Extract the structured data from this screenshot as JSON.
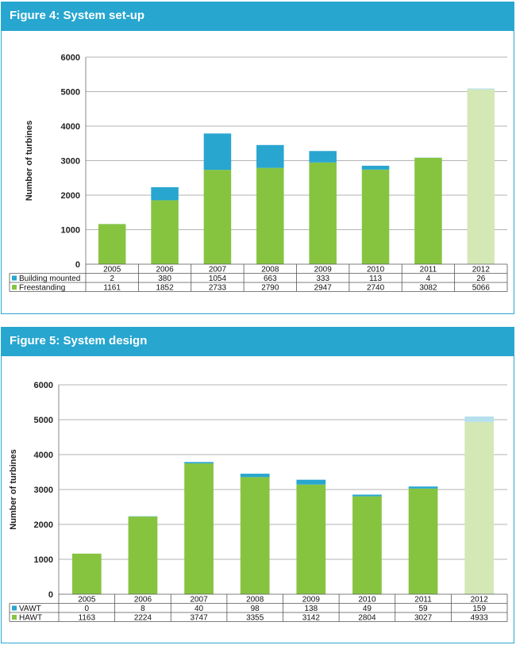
{
  "colors": {
    "header": "#27a6d0",
    "green": "#86c440",
    "blue": "#29a6cf",
    "green_light": "#d4e8b6",
    "blue_light": "#b6e0ee"
  },
  "figures": [
    {
      "title": "Figure 4: System set-up",
      "ylabel": "Number of turbines"
    },
    {
      "title": "Figure 5: System design",
      "ylabel": "Number of turbines"
    }
  ],
  "chart_data": [
    {
      "type": "bar",
      "stacked": true,
      "title": "Figure 4: System set-up",
      "ylabel": "Number of turbines",
      "ylim": [
        0,
        6000
      ],
      "yticks": [
        "0",
        "1000",
        "2000",
        "3000",
        "4000",
        "5000",
        "6000"
      ],
      "categories": [
        "2005",
        "2006",
        "2007",
        "2008",
        "2009",
        "2010",
        "2011",
        "2012"
      ],
      "highlight_last_category": true,
      "series": [
        {
          "name": "Building mounted",
          "color": "#29a6cf",
          "values": [
            2,
            380,
            1054,
            663,
            333,
            113,
            4,
            26
          ]
        },
        {
          "name": "Freestanding",
          "color": "#86c440",
          "values": [
            1161,
            1852,
            2733,
            2790,
            2947,
            2740,
            3082,
            5066
          ]
        }
      ],
      "table_rows": [
        "Building mounted",
        "Freestanding"
      ],
      "grid": true
    },
    {
      "type": "bar",
      "stacked": true,
      "title": "Figure 5: System design",
      "ylabel": "Number of turbines",
      "ylim": [
        0,
        6000
      ],
      "yticks": [
        "0",
        "1000",
        "2000",
        "3000",
        "4000",
        "5000",
        "6000"
      ],
      "categories": [
        "2005",
        "2006",
        "2007",
        "2008",
        "2009",
        "2010",
        "2011",
        "2012"
      ],
      "highlight_last_category": true,
      "series": [
        {
          "name": "VAWT",
          "color": "#29a6cf",
          "values": [
            0,
            8,
            40,
            98,
            138,
            49,
            59,
            159
          ]
        },
        {
          "name": "HAWT",
          "color": "#86c440",
          "values": [
            1163,
            2224,
            3747,
            3355,
            3142,
            2804,
            3027,
            4933
          ]
        }
      ],
      "table_rows": [
        "VAWT",
        "HAWT"
      ],
      "grid": true
    }
  ]
}
